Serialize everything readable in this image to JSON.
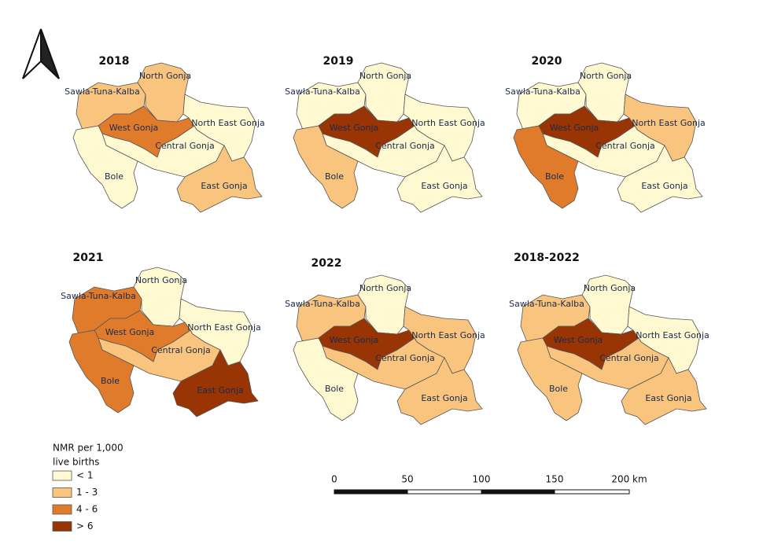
{
  "districts": [
    "Sawla-Tuna-Kalba",
    "North Gonja",
    "West Gonja",
    "North East Gonja",
    "Central Gonja",
    "Bole",
    "East Gonja"
  ],
  "maps": [
    {
      "title": "2018",
      "classes": [
        "1 - 3",
        "1 - 3",
        "4 - 6",
        "< 1",
        "< 1",
        "< 1",
        "1 - 3"
      ]
    },
    {
      "title": "2019",
      "classes": [
        "< 1",
        "< 1",
        "> 6",
        "< 1",
        "< 1",
        "1 - 3",
        "< 1"
      ]
    },
    {
      "title": "2020",
      "classes": [
        "< 1",
        "< 1",
        "> 6",
        "1 - 3",
        "< 1",
        "4 - 6",
        "< 1"
      ]
    },
    {
      "title": "2021",
      "classes": [
        "4 - 6",
        "< 1",
        "4 - 6",
        "< 1",
        "1 - 3",
        "4 - 6",
        "> 6"
      ]
    },
    {
      "title": "2022",
      "classes": [
        "1 - 3",
        "< 1",
        "> 6",
        "1 - 3",
        "1 - 3",
        "< 1",
        "1 - 3"
      ]
    },
    {
      "title": "2018-2022",
      "classes": [
        "1 - 3",
        "< 1",
        "> 6",
        "< 1",
        "1 - 3",
        "1 - 3",
        "1 - 3"
      ]
    }
  ],
  "legend": {
    "title": [
      "NMR per 1,000",
      "live births"
    ],
    "items": [
      {
        "label": "< 1",
        "color": "#fff9d2"
      },
      {
        "label": "1 - 3",
        "color": "#f8c47e"
      },
      {
        "label": "4 - 6",
        "color": "#e17b2c"
      },
      {
        "label": "> 6",
        "color": "#993404"
      }
    ]
  },
  "scale_bar": [
    "0",
    "50",
    "100",
    "150",
    "200 km"
  ]
}
